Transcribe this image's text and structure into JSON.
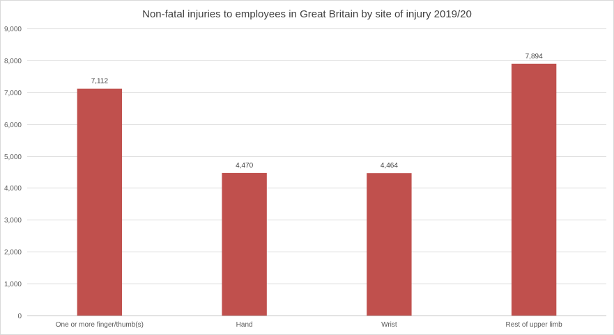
{
  "chart_data": {
    "type": "bar",
    "title": "Non-fatal injuries to employees in Great Britain by site of injury 2019/20",
    "xlabel": "",
    "ylabel": "",
    "categories": [
      "One or more finger/thumb(s)",
      "Hand",
      "Wrist",
      "Rest of upper limb"
    ],
    "values": [
      7112,
      4470,
      4464,
      7894
    ],
    "value_labels": [
      "7,112",
      "4,470",
      "4,464",
      "7,894"
    ],
    "ylim": [
      0,
      9000
    ],
    "yticks": [
      0,
      1000,
      2000,
      3000,
      4000,
      5000,
      6000,
      7000,
      8000,
      9000
    ],
    "ytick_labels": [
      "0",
      "1,000",
      "2,000",
      "3,000",
      "4,000",
      "5,000",
      "6,000",
      "7,000",
      "8,000",
      "9,000"
    ],
    "grid": true,
    "legend": "none",
    "bar_color": "#c0504d"
  }
}
